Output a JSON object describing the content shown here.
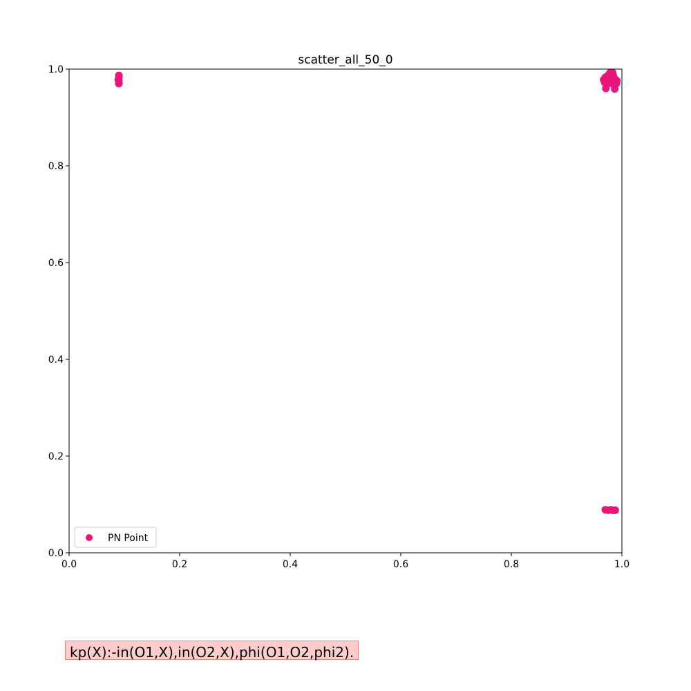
{
  "chart_data": {
    "type": "scatter",
    "title": "scatter_all_50_0",
    "xlabel": "",
    "ylabel": "",
    "xlim": [
      0,
      1
    ],
    "ylim": [
      0,
      1
    ],
    "xticks": [
      "0.0",
      "0.2",
      "0.4",
      "0.6",
      "0.8",
      "1.0"
    ],
    "yticks": [
      "0.0",
      "0.2",
      "0.4",
      "0.6",
      "0.8",
      "1.0"
    ],
    "grid": false,
    "legend": "lower-left",
    "series": [
      {
        "name": "PN Point",
        "color": "#e8157a",
        "points": [
          [
            0.09,
            0.987
          ],
          [
            0.09,
            0.982
          ],
          [
            0.09,
            0.975
          ],
          [
            0.09,
            0.97
          ],
          [
            0.089,
            0.978
          ],
          [
            0.967,
            0.978
          ],
          [
            0.97,
            0.983
          ],
          [
            0.972,
            0.975
          ],
          [
            0.974,
            0.986
          ],
          [
            0.976,
            0.98
          ],
          [
            0.978,
            0.99
          ],
          [
            0.98,
            0.985
          ],
          [
            0.982,
            0.978
          ],
          [
            0.984,
            0.988
          ],
          [
            0.986,
            0.982
          ],
          [
            0.988,
            0.975
          ],
          [
            0.975,
            0.97
          ],
          [
            0.98,
            0.972
          ],
          [
            0.985,
            0.968
          ],
          [
            0.99,
            0.97
          ],
          [
            0.971,
            0.96
          ],
          [
            0.987,
            0.959
          ],
          [
            0.978,
            0.992
          ],
          [
            0.983,
            0.993
          ],
          [
            0.973,
            0.968
          ],
          [
            0.991,
            0.976
          ],
          [
            0.969,
            0.972
          ],
          [
            0.977,
            0.982
          ],
          [
            0.982,
            0.988
          ],
          [
            0.986,
            0.972
          ],
          [
            0.97,
            0.089
          ],
          [
            0.975,
            0.088
          ],
          [
            0.98,
            0.089
          ],
          [
            0.984,
            0.088
          ],
          [
            0.988,
            0.088
          ]
        ]
      }
    ]
  },
  "rule_text": "kp(X):-in(O1,X),in(O2,X),phi(O1,O2,phi2)."
}
